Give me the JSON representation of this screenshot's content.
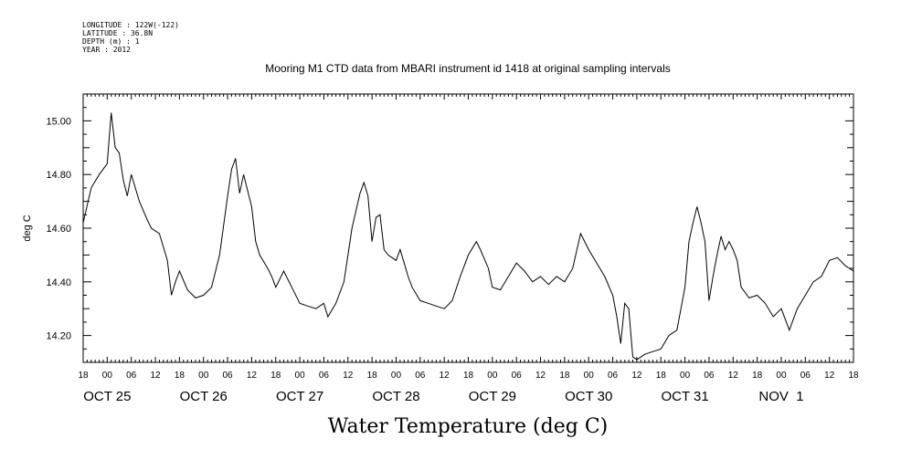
{
  "header": {
    "lines": [
      "LONGITUDE : 122W(-122)",
      "LATITUDE : 36.8N",
      "DEPTH (m) : 1",
      "YEAR : 2012"
    ]
  },
  "chart_data": {
    "type": "line",
    "title": "Mooring M1 CTD data from MBARI instrument id 1418 at original sampling intervals",
    "xlabel": "Water Temperature (deg C)",
    "ylabel": "deg C",
    "ylim": [
      14.1,
      15.1
    ],
    "xlim": [
      "2012-10-24T18:00",
      "2012-11-01T18:00"
    ],
    "yticks": [
      "14.20",
      "14.40",
      "14.60",
      "14.80",
      "15.00"
    ],
    "xtick_hour_labels": [
      "18",
      "00",
      "06",
      "12",
      "18",
      "00",
      "06",
      "12",
      "18",
      "00",
      "06",
      "12",
      "18",
      "00",
      "06",
      "12",
      "18",
      "00",
      "06",
      "12",
      "18",
      "00",
      "06",
      "12",
      "18",
      "00",
      "06",
      "12",
      "18",
      "00",
      "06",
      "12",
      "18"
    ],
    "day_labels": [
      "OCT 25",
      "OCT 26",
      "OCT 27",
      "OCT 28",
      "OCT 29",
      "OCT 30",
      "OCT 31",
      "NOV  1"
    ],
    "series": [
      {
        "points": [
          [
            "2012-10-24T18:00",
            14.62
          ],
          [
            "2012-10-24T20:00",
            14.75
          ],
          [
            "2012-10-24T22:00",
            14.8
          ],
          [
            "2012-10-25T00:00",
            14.84
          ],
          [
            "2012-10-25T01:00",
            15.03
          ],
          [
            "2012-10-25T02:00",
            14.9
          ],
          [
            "2012-10-25T03:00",
            14.88
          ],
          [
            "2012-10-25T04:00",
            14.78
          ],
          [
            "2012-10-25T05:00",
            14.72
          ],
          [
            "2012-10-25T06:00",
            14.8
          ],
          [
            "2012-10-25T07:00",
            14.75
          ],
          [
            "2012-10-25T08:00",
            14.7
          ],
          [
            "2012-10-25T10:00",
            14.63
          ],
          [
            "2012-10-25T11:00",
            14.6
          ],
          [
            "2012-10-25T13:00",
            14.58
          ],
          [
            "2012-10-25T15:00",
            14.48
          ],
          [
            "2012-10-25T16:00",
            14.35
          ],
          [
            "2012-10-25T17:00",
            14.4
          ],
          [
            "2012-10-25T18:00",
            14.44
          ],
          [
            "2012-10-25T20:00",
            14.37
          ],
          [
            "2012-10-25T22:00",
            14.34
          ],
          [
            "2012-10-26T00:00",
            14.35
          ],
          [
            "2012-10-26T02:00",
            14.38
          ],
          [
            "2012-10-26T04:00",
            14.5
          ],
          [
            "2012-10-26T06:00",
            14.72
          ],
          [
            "2012-10-26T07:00",
            14.82
          ],
          [
            "2012-10-26T08:00",
            14.86
          ],
          [
            "2012-10-26T09:00",
            14.73
          ],
          [
            "2012-10-26T10:00",
            14.8
          ],
          [
            "2012-10-26T12:00",
            14.68
          ],
          [
            "2012-10-26T13:00",
            14.55
          ],
          [
            "2012-10-26T14:00",
            14.5
          ],
          [
            "2012-10-26T16:00",
            14.45
          ],
          [
            "2012-10-26T17:00",
            14.42
          ],
          [
            "2012-10-26T18:00",
            14.38
          ],
          [
            "2012-10-26T20:00",
            14.44
          ],
          [
            "2012-10-26T22:00",
            14.38
          ],
          [
            "2012-10-27T00:00",
            14.32
          ],
          [
            "2012-10-27T02:00",
            14.31
          ],
          [
            "2012-10-27T04:00",
            14.3
          ],
          [
            "2012-10-27T06:00",
            14.32
          ],
          [
            "2012-10-27T07:00",
            14.27
          ],
          [
            "2012-10-27T09:00",
            14.32
          ],
          [
            "2012-10-27T11:00",
            14.4
          ],
          [
            "2012-10-27T13:00",
            14.6
          ],
          [
            "2012-10-27T15:00",
            14.73
          ],
          [
            "2012-10-27T16:00",
            14.77
          ],
          [
            "2012-10-27T17:00",
            14.72
          ],
          [
            "2012-10-27T18:00",
            14.55
          ],
          [
            "2012-10-27T19:00",
            14.64
          ],
          [
            "2012-10-27T20:00",
            14.65
          ],
          [
            "2012-10-27T21:00",
            14.52
          ],
          [
            "2012-10-27T22:00",
            14.5
          ],
          [
            "2012-10-28T00:00",
            14.48
          ],
          [
            "2012-10-28T01:00",
            14.52
          ],
          [
            "2012-10-28T02:00",
            14.47
          ],
          [
            "2012-10-28T03:00",
            14.42
          ],
          [
            "2012-10-28T04:00",
            14.38
          ],
          [
            "2012-10-28T06:00",
            14.33
          ],
          [
            "2012-10-28T08:00",
            14.32
          ],
          [
            "2012-10-28T10:00",
            14.31
          ],
          [
            "2012-10-28T12:00",
            14.3
          ],
          [
            "2012-10-28T14:00",
            14.33
          ],
          [
            "2012-10-28T16:00",
            14.42
          ],
          [
            "2012-10-28T18:00",
            14.5
          ],
          [
            "2012-10-28T20:00",
            14.55
          ],
          [
            "2012-10-28T21:00",
            14.52
          ],
          [
            "2012-10-28T23:00",
            14.45
          ],
          [
            "2012-10-29T00:00",
            14.38
          ],
          [
            "2012-10-29T02:00",
            14.37
          ],
          [
            "2012-10-29T04:00",
            14.42
          ],
          [
            "2012-10-29T06:00",
            14.47
          ],
          [
            "2012-10-29T08:00",
            14.44
          ],
          [
            "2012-10-29T10:00",
            14.4
          ],
          [
            "2012-10-29T12:00",
            14.42
          ],
          [
            "2012-10-29T14:00",
            14.39
          ],
          [
            "2012-10-29T16:00",
            14.42
          ],
          [
            "2012-10-29T18:00",
            14.4
          ],
          [
            "2012-10-29T20:00",
            14.45
          ],
          [
            "2012-10-29T22:00",
            14.58
          ],
          [
            "2012-10-30T00:00",
            14.52
          ],
          [
            "2012-10-30T02:00",
            14.47
          ],
          [
            "2012-10-30T04:00",
            14.42
          ],
          [
            "2012-10-30T06:00",
            14.35
          ],
          [
            "2012-10-30T07:00",
            14.27
          ],
          [
            "2012-10-30T08:00",
            14.17
          ],
          [
            "2012-10-30T09:00",
            14.32
          ],
          [
            "2012-10-30T10:00",
            14.3
          ],
          [
            "2012-10-30T11:00",
            14.12
          ],
          [
            "2012-10-30T12:00",
            14.11
          ],
          [
            "2012-10-30T14:00",
            14.13
          ],
          [
            "2012-10-30T16:00",
            14.14
          ],
          [
            "2012-10-30T18:00",
            14.15
          ],
          [
            "2012-10-30T20:00",
            14.2
          ],
          [
            "2012-10-30T22:00",
            14.22
          ],
          [
            "2012-10-31T00:00",
            14.38
          ],
          [
            "2012-10-31T01:00",
            14.55
          ],
          [
            "2012-10-31T02:00",
            14.62
          ],
          [
            "2012-10-31T03:00",
            14.68
          ],
          [
            "2012-10-31T04:00",
            14.62
          ],
          [
            "2012-10-31T05:00",
            14.55
          ],
          [
            "2012-10-31T06:00",
            14.33
          ],
          [
            "2012-10-31T07:00",
            14.42
          ],
          [
            "2012-10-31T08:00",
            14.5
          ],
          [
            "2012-10-31T09:00",
            14.57
          ],
          [
            "2012-10-31T10:00",
            14.52
          ],
          [
            "2012-10-31T11:00",
            14.55
          ],
          [
            "2012-10-31T12:00",
            14.52
          ],
          [
            "2012-10-31T13:00",
            14.48
          ],
          [
            "2012-10-31T14:00",
            14.38
          ],
          [
            "2012-10-31T16:00",
            14.34
          ],
          [
            "2012-10-31T18:00",
            14.35
          ],
          [
            "2012-10-31T20:00",
            14.32
          ],
          [
            "2012-10-31T22:00",
            14.27
          ],
          [
            "2012-11-01T00:00",
            14.3
          ],
          [
            "2012-11-01T02:00",
            14.22
          ],
          [
            "2012-11-01T04:00",
            14.3
          ],
          [
            "2012-11-01T06:00",
            14.35
          ],
          [
            "2012-11-01T08:00",
            14.4
          ],
          [
            "2012-11-01T10:00",
            14.42
          ],
          [
            "2012-11-01T12:00",
            14.48
          ],
          [
            "2012-11-01T14:00",
            14.49
          ],
          [
            "2012-11-01T16:00",
            14.46
          ],
          [
            "2012-11-01T18:00",
            14.44
          ]
        ]
      }
    ]
  }
}
